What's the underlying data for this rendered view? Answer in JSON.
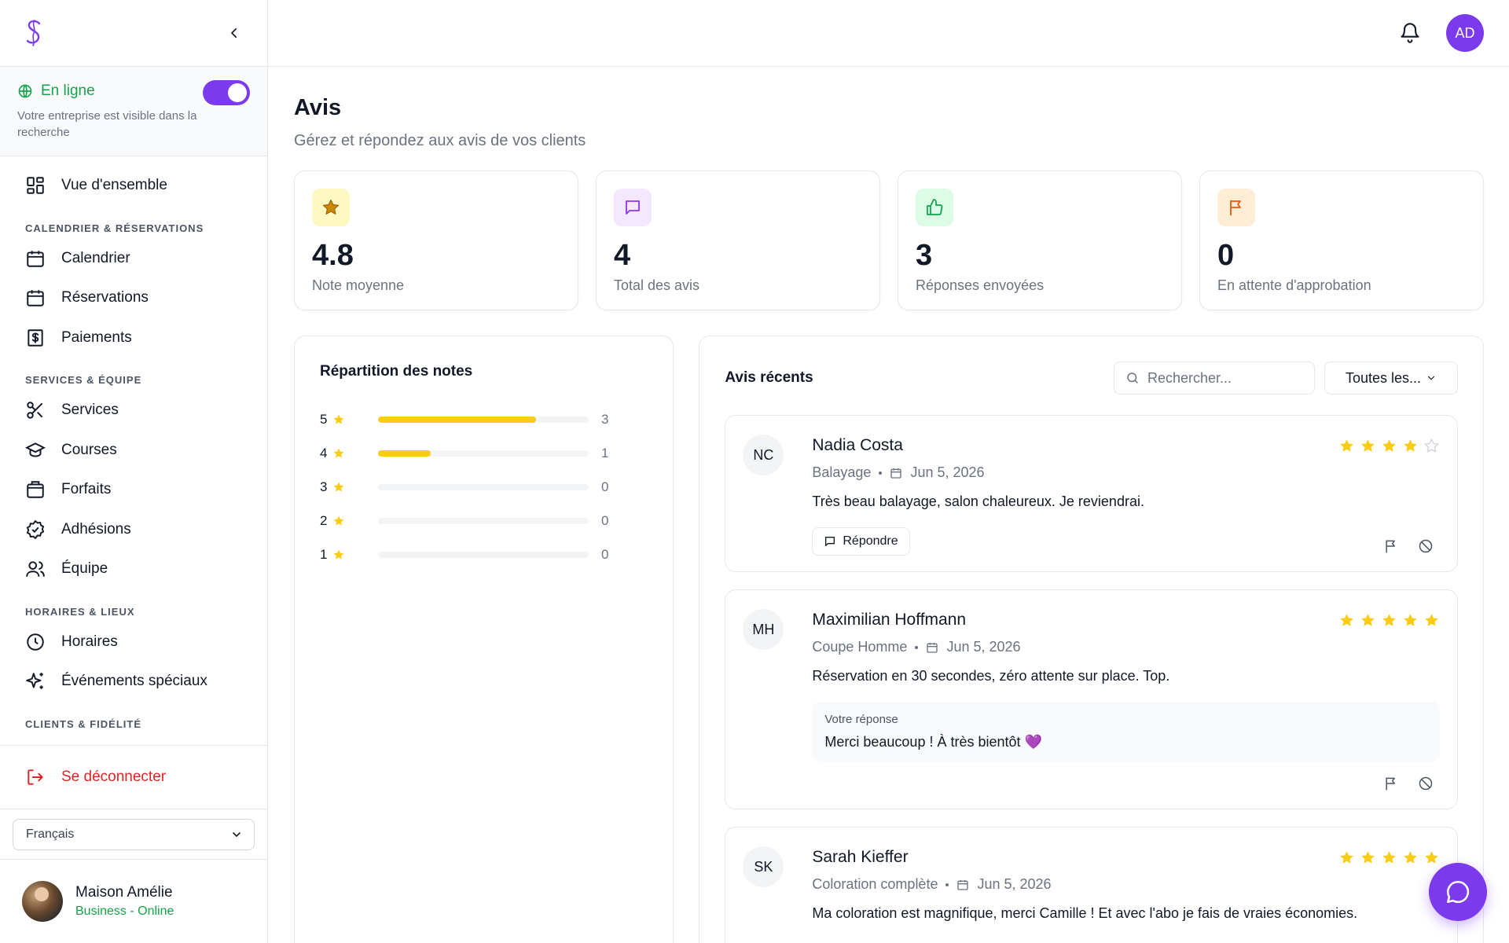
{
  "sidebar": {
    "online": {
      "label": "En ligne",
      "description": "Votre entreprise est visible dans la recherche",
      "enabled": true
    },
    "overview": "Vue d'ensemble",
    "sections": [
      {
        "label": "CALENDRIER & RÉSERVATIONS",
        "items": [
          "Calendrier",
          "Réservations",
          "Paiements"
        ]
      },
      {
        "label": "SERVICES & ÉQUIPE",
        "items": [
          "Services",
          "Courses",
          "Forfaits",
          "Adhésions",
          "Équipe"
        ]
      },
      {
        "label": "HORAIRES & LIEUX",
        "items": [
          "Horaires",
          "Événements spéciaux"
        ]
      },
      {
        "label": "CLIENTS & FIDÉLITÉ"
      }
    ],
    "logout": "Se déconnecter",
    "language": "Français",
    "business": {
      "name": "Maison Amélie",
      "status": "Business - Online"
    }
  },
  "header": {
    "avatar_initials": "AD"
  },
  "page": {
    "title": "Avis",
    "subtitle": "Gérez et répondez aux avis de vos clients"
  },
  "stats": [
    {
      "value": "4.8",
      "label": "Note moyenne",
      "icon": "star-icon"
    },
    {
      "value": "4",
      "label": "Total des avis",
      "icon": "message-icon"
    },
    {
      "value": "3",
      "label": "Réponses envoyées",
      "icon": "thumbs-up-icon"
    },
    {
      "value": "0",
      "label": "En attente d'approbation",
      "icon": "flag-icon"
    }
  ],
  "distribution": {
    "title": "Répartition des notes",
    "rows": [
      {
        "rating": "5",
        "count": "3",
        "fraction": 0.75
      },
      {
        "rating": "4",
        "count": "1",
        "fraction": 0.25
      },
      {
        "rating": "3",
        "count": "0",
        "fraction": 0
      },
      {
        "rating": "2",
        "count": "0",
        "fraction": 0
      },
      {
        "rating": "1",
        "count": "0",
        "fraction": 0
      }
    ]
  },
  "recent": {
    "title": "Avis récents",
    "search_placeholder": "Rechercher...",
    "filter_label": "Toutes les...",
    "reply_label": "Répondre",
    "response_label": "Votre réponse",
    "reviews": [
      {
        "initials": "NC",
        "name": "Nadia Costa",
        "service": "Balayage",
        "date": "Jun 5, 2026",
        "text": "Très beau balayage, salon chaleureux. Je reviendrai.",
        "rating": 4
      },
      {
        "initials": "MH",
        "name": "Maximilian Hoffmann",
        "service": "Coupe Homme",
        "date": "Jun 5, 2026",
        "text": "Réservation en 30 secondes, zéro attente sur place. Top.",
        "rating": 5,
        "response": "Merci beaucoup ! À très bientôt 💜"
      },
      {
        "initials": "SK",
        "name": "Sarah Kieffer",
        "service": "Coloration complète",
        "date": "Jun 5, 2026",
        "text": "Ma coloration est magnifique, merci Camille ! Et avec l'abo je fais de vraies économies.",
        "rating": 5
      }
    ]
  },
  "colors": {
    "accent": "#7c3aed",
    "star": "#facc15",
    "online": "#16a34a",
    "danger": "#dc2626"
  }
}
